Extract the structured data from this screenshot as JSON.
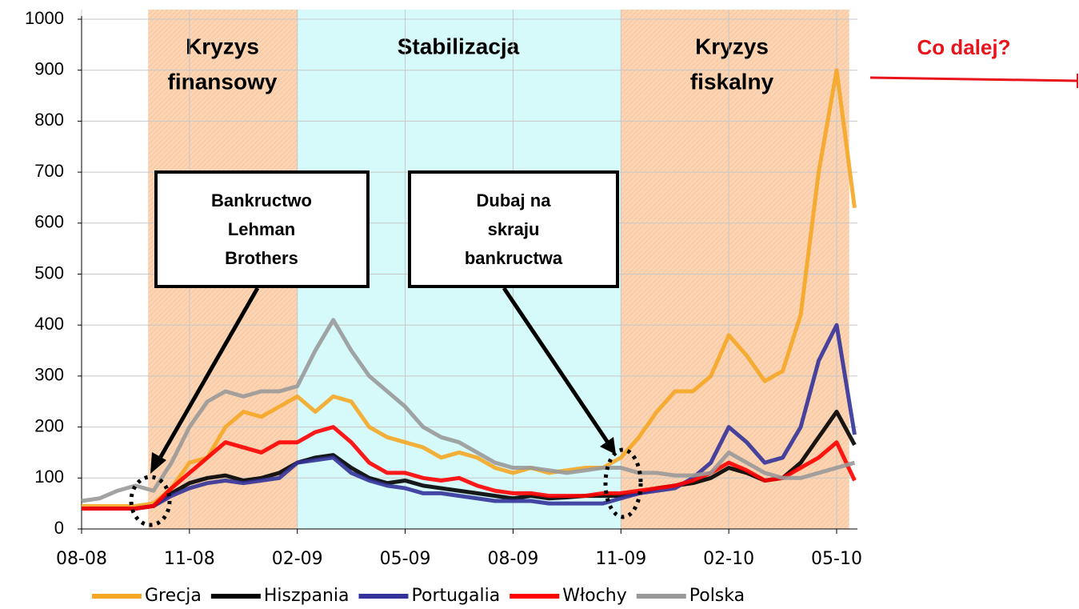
{
  "chart_data": {
    "type": "line",
    "categories": [
      "08-08",
      null,
      null,
      null,
      null,
      null,
      "11-08",
      null,
      null,
      null,
      null,
      null,
      "02-09",
      null,
      null,
      null,
      null,
      null,
      "05-09",
      null,
      null,
      null,
      null,
      null,
      "08-09",
      null,
      null,
      null,
      null,
      null,
      "11-09",
      null,
      null,
      null,
      null,
      null,
      "02-10",
      null,
      null,
      null,
      null,
      null,
      "05-10",
      null
    ],
    "ylim": [
      0,
      1000
    ],
    "yticks": [
      0,
      100,
      200,
      300,
      400,
      500,
      600,
      700,
      800,
      900,
      1000
    ],
    "grid": true,
    "series": [
      {
        "name": "Grecja",
        "color": "#f5a623",
        "values": [
          45,
          45,
          45,
          45,
          50,
          80,
          130,
          140,
          200,
          230,
          220,
          240,
          260,
          230,
          260,
          250,
          200,
          180,
          170,
          160,
          140,
          150,
          140,
          120,
          110,
          120,
          110,
          115,
          120,
          120,
          140,
          180,
          230,
          270,
          270,
          300,
          380,
          340,
          290,
          310,
          420,
          700,
          900,
          630
        ]
      },
      {
        "name": "Hiszpania",
        "color": "#000000",
        "values": [
          40,
          40,
          40,
          40,
          45,
          70,
          90,
          100,
          105,
          95,
          100,
          110,
          130,
          140,
          145,
          120,
          100,
          90,
          95,
          85,
          80,
          75,
          70,
          65,
          60,
          65,
          60,
          62,
          65,
          65,
          65,
          70,
          80,
          85,
          90,
          100,
          120,
          110,
          95,
          100,
          130,
          180,
          230,
          165
        ]
      },
      {
        "name": "Portugalia",
        "color": "#333399",
        "values": [
          40,
          40,
          40,
          40,
          45,
          65,
          80,
          90,
          95,
          90,
          95,
          100,
          130,
          135,
          140,
          110,
          95,
          85,
          80,
          70,
          70,
          65,
          60,
          55,
          55,
          55,
          50,
          50,
          50,
          50,
          60,
          70,
          75,
          80,
          100,
          130,
          200,
          170,
          130,
          140,
          200,
          330,
          400,
          185
        ]
      },
      {
        "name": "Włochy",
        "color": "#ff0000",
        "values": [
          40,
          40,
          40,
          40,
          45,
          80,
          110,
          140,
          170,
          160,
          150,
          170,
          170,
          190,
          200,
          170,
          130,
          110,
          110,
          100,
          95,
          100,
          85,
          75,
          70,
          70,
          65,
          65,
          65,
          70,
          70,
          75,
          80,
          85,
          95,
          110,
          130,
          115,
          95,
          100,
          120,
          140,
          170,
          95
        ]
      },
      {
        "name": "Polska",
        "color": "#999999",
        "values": [
          55,
          60,
          75,
          85,
          75,
          130,
          200,
          250,
          270,
          260,
          270,
          270,
          280,
          350,
          410,
          350,
          300,
          270,
          240,
          200,
          180,
          170,
          150,
          130,
          120,
          120,
          115,
          110,
          115,
          120,
          120,
          110,
          110,
          105,
          105,
          110,
          150,
          130,
          110,
          100,
          100,
          110,
          120,
          130
        ]
      }
    ],
    "periods": [
      {
        "label": [
          "Kryzys",
          "finansowy"
        ]
      },
      {
        "label": [
          "Stabilizacja"
        ]
      },
      {
        "label": [
          "Kryzys",
          "fiskalny"
        ]
      }
    ],
    "annotations": [
      {
        "label": [
          "Bankructwo",
          "Lehman",
          "Brothers"
        ]
      },
      {
        "label": [
          "Dubaj na",
          "skraju",
          "bankructwa"
        ]
      }
    ],
    "outlook": "Co dalej?"
  }
}
